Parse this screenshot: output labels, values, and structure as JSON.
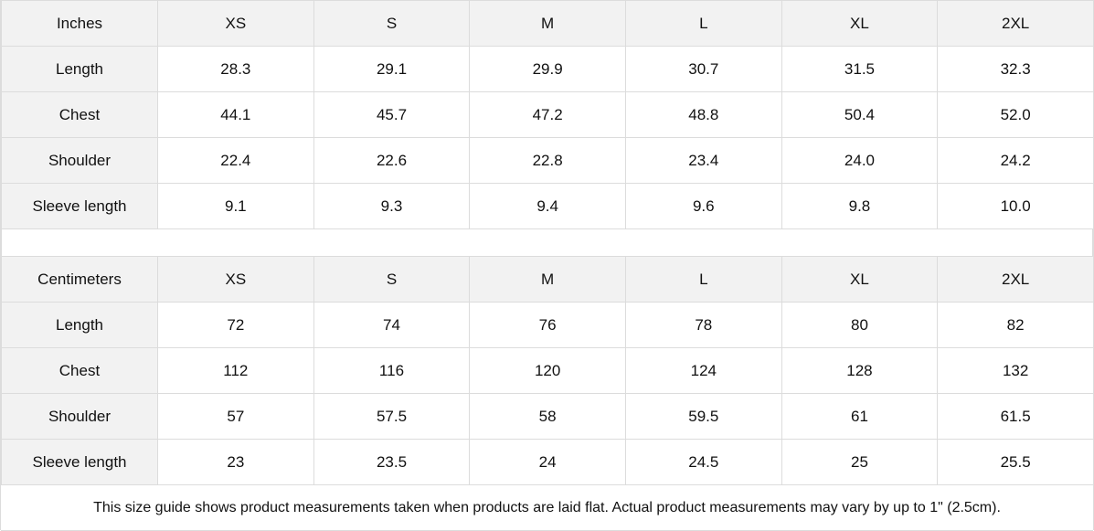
{
  "sizes": [
    "XS",
    "S",
    "M",
    "L",
    "XL",
    "2XL"
  ],
  "tables": [
    {
      "unit": "Inches",
      "rows": [
        {
          "label": "Length",
          "values": [
            "28.3",
            "29.1",
            "29.9",
            "30.7",
            "31.5",
            "32.3"
          ]
        },
        {
          "label": "Chest",
          "values": [
            "44.1",
            "45.7",
            "47.2",
            "48.8",
            "50.4",
            "52.0"
          ]
        },
        {
          "label": "Shoulder",
          "values": [
            "22.4",
            "22.6",
            "22.8",
            "23.4",
            "24.0",
            "24.2"
          ]
        },
        {
          "label": "Sleeve length",
          "values": [
            "9.1",
            "9.3",
            "9.4",
            "9.6",
            "9.8",
            "10.0"
          ]
        }
      ]
    },
    {
      "unit": "Centimeters",
      "rows": [
        {
          "label": "Length",
          "values": [
            "72",
            "74",
            "76",
            "78",
            "80",
            "82"
          ]
        },
        {
          "label": "Chest",
          "values": [
            "112",
            "116",
            "120",
            "124",
            "128",
            "132"
          ]
        },
        {
          "label": "Shoulder",
          "values": [
            "57",
            "57.5",
            "58",
            "59.5",
            "61",
            "61.5"
          ]
        },
        {
          "label": "Sleeve length",
          "values": [
            "23",
            "23.5",
            "24",
            "24.5",
            "25",
            "25.5"
          ]
        }
      ]
    }
  ],
  "note": "This size guide shows product measurements taken when products are laid flat.  Actual product measurements may vary by up to 1\" (2.5cm)."
}
